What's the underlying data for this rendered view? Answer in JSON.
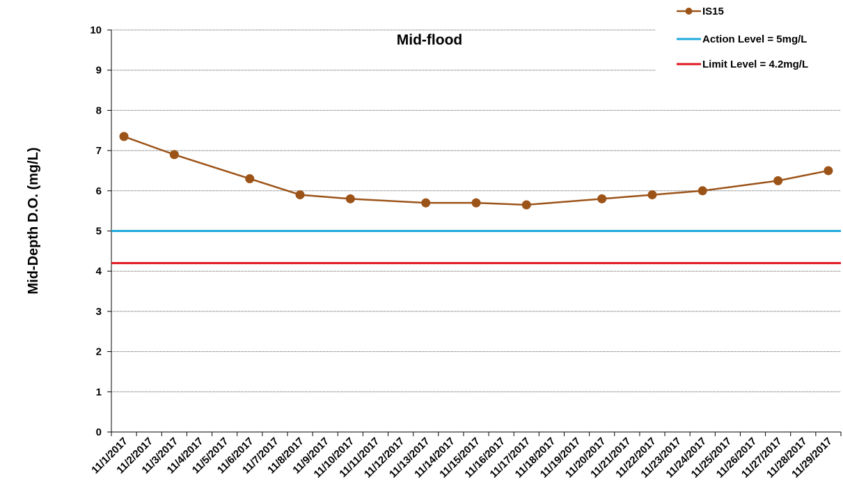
{
  "chart_data": {
    "type": "line",
    "title": "Mid-flood",
    "xlabel": "",
    "ylabel": "Mid-Depth D.O. (mg/L)",
    "ylim": [
      0,
      10
    ],
    "yticks": [
      0,
      1,
      2,
      3,
      4,
      5,
      6,
      7,
      8,
      9,
      10
    ],
    "grid": true,
    "legend_position": "top-right",
    "categories": [
      "11/1/2017",
      "11/2/2017",
      "11/3/2017",
      "11/4/2017",
      "11/5/2017",
      "11/6/2017",
      "11/7/2017",
      "11/8/2017",
      "11/9/2017",
      "11/10/2017",
      "11/11/2017",
      "11/12/2017",
      "11/13/2017",
      "11/14/2017",
      "11/15/2017",
      "11/16/2017",
      "11/17/2017",
      "11/18/2017",
      "11/19/2017",
      "11/20/2017",
      "11/21/2017",
      "11/22/2017",
      "11/23/2017",
      "11/24/2017",
      "11/25/2017",
      "11/26/2017",
      "11/27/2017",
      "11/28/2017",
      "11/29/2017"
    ],
    "series": [
      {
        "name": "IS15",
        "color": "#9c5318",
        "points": [
          {
            "x": "11/1/2017",
            "y": 7.35
          },
          {
            "x": "11/3/2017",
            "y": 6.9
          },
          {
            "x": "11/6/2017",
            "y": 6.3
          },
          {
            "x": "11/8/2017",
            "y": 5.9
          },
          {
            "x": "11/10/2017",
            "y": 5.8
          },
          {
            "x": "11/13/2017",
            "y": 5.7
          },
          {
            "x": "11/15/2017",
            "y": 5.7
          },
          {
            "x": "11/17/2017",
            "y": 5.65
          },
          {
            "x": "11/20/2017",
            "y": 5.8
          },
          {
            "x": "11/22/2017",
            "y": 5.9
          },
          {
            "x": "11/24/2017",
            "y": 6.0
          },
          {
            "x": "11/27/2017",
            "y": 6.25
          },
          {
            "x": "11/29/2017",
            "y": 6.5
          }
        ]
      },
      {
        "name": "Action Level = 5mg/L",
        "color": "#1eaadc",
        "value": 5
      },
      {
        "name": "Limit Level = 4.2mg/L",
        "color": "#e0141e",
        "value": 4.2
      }
    ]
  }
}
